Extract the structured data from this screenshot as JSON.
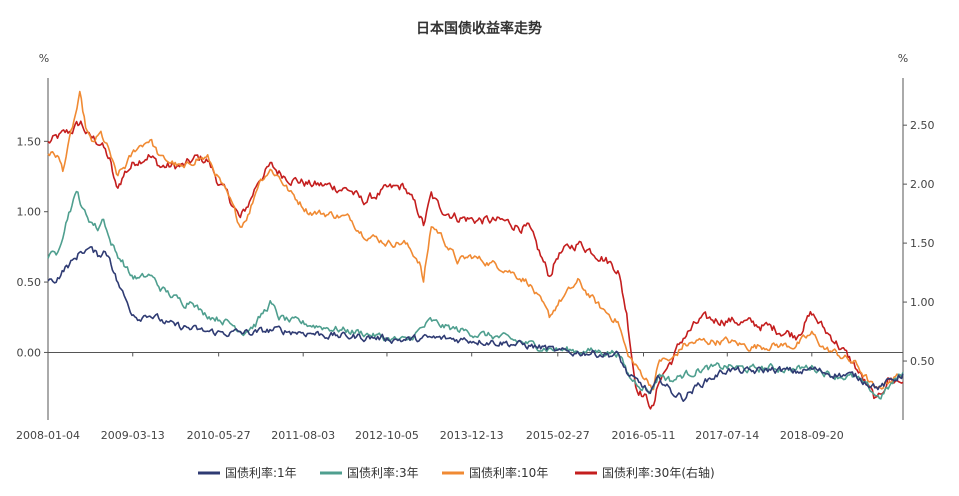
{
  "chart_data": {
    "type": "line",
    "title": "日本国债收益率走势",
    "left_unit": "%",
    "right_unit": "%",
    "x_ticks": [
      "2008-01-04",
      "2009-03-13",
      "2010-05-27",
      "2011-08-03",
      "2012-10-05",
      "2013-12-13",
      "2015-02-27",
      "2016-05-11",
      "2017-07-14",
      "2018-09-20"
    ],
    "x_range": [
      "2008-01-04",
      "2019-12-31"
    ],
    "ylim_left": [
      -0.48,
      1.95
    ],
    "ylim_right": [
      0.0,
      2.9
    ],
    "y_ticks_left": [
      "1.50",
      "1.00",
      "0.50",
      "0.00"
    ],
    "y_ticks_left_values": [
      1.5,
      1.0,
      0.5,
      0.0
    ],
    "y_ticks_right": [
      "2.50",
      "2.00",
      "1.50",
      "1.00",
      "0.50"
    ],
    "y_ticks_right_values": [
      2.5,
      2.0,
      1.5,
      1.0,
      0.5
    ],
    "grid": false,
    "legend_position": "bottom",
    "series": [
      {
        "name": "国债利率:1年",
        "color": "#2f3b73",
        "axis": "left",
        "points": [
          [
            "2008-01-04",
            0.5
          ],
          [
            "2008-02-15",
            0.52
          ],
          [
            "2008-04-01",
            0.6
          ],
          [
            "2008-05-15",
            0.65
          ],
          [
            "2008-06-20",
            0.72
          ],
          [
            "2008-08-01",
            0.74
          ],
          [
            "2008-09-15",
            0.69
          ],
          [
            "2008-10-15",
            0.72
          ],
          [
            "2008-11-15",
            0.68
          ],
          [
            "2008-12-20",
            0.52
          ],
          [
            "2009-01-20",
            0.42
          ],
          [
            "2009-03-01",
            0.3
          ],
          [
            "2009-04-15",
            0.25
          ],
          [
            "2009-06-01",
            0.28
          ],
          [
            "2009-08-01",
            0.23
          ],
          [
            "2009-10-01",
            0.19
          ],
          [
            "2009-12-01",
            0.18
          ],
          [
            "2010-03-01",
            0.15
          ],
          [
            "2010-06-01",
            0.14
          ],
          [
            "2010-09-01",
            0.14
          ],
          [
            "2010-12-01",
            0.14
          ],
          [
            "2011-03-01",
            0.16
          ],
          [
            "2011-06-01",
            0.15
          ],
          [
            "2011-09-01",
            0.14
          ],
          [
            "2012-01-01",
            0.12
          ],
          [
            "2012-06-01",
            0.11
          ],
          [
            "2012-10-05",
            0.1
          ],
          [
            "2013-01-01",
            0.09
          ],
          [
            "2013-06-01",
            0.1
          ],
          [
            "2013-12-13",
            0.09
          ],
          [
            "2014-06-01",
            0.07
          ],
          [
            "2015-01-01",
            0.03
          ],
          [
            "2015-02-27",
            0.0
          ],
          [
            "2015-08-01",
            0.0
          ],
          [
            "2016-01-01",
            -0.02
          ],
          [
            "2016-03-01",
            -0.18
          ],
          [
            "2016-05-11",
            -0.24
          ],
          [
            "2016-06-15",
            -0.3
          ],
          [
            "2016-08-01",
            -0.18
          ],
          [
            "2016-10-01",
            -0.28
          ],
          [
            "2016-12-01",
            -0.32
          ],
          [
            "2017-03-01",
            -0.22
          ],
          [
            "2017-07-14",
            -0.12
          ],
          [
            "2017-11-01",
            -0.14
          ],
          [
            "2018-03-01",
            -0.12
          ],
          [
            "2018-07-01",
            -0.14
          ],
          [
            "2018-09-20",
            -0.12
          ],
          [
            "2019-01-01",
            -0.15
          ],
          [
            "2019-05-01",
            -0.17
          ],
          [
            "2019-09-01",
            -0.25
          ],
          [
            "2019-12-31",
            -0.15
          ]
        ]
      },
      {
        "name": "国债利率:3年",
        "color": "#4f9f8f",
        "axis": "left",
        "points": [
          [
            "2008-01-04",
            0.68
          ],
          [
            "2008-02-15",
            0.7
          ],
          [
            "2008-03-20",
            0.85
          ],
          [
            "2008-04-20",
            1.0
          ],
          [
            "2008-06-05",
            1.15
          ],
          [
            "2008-06-25",
            1.02
          ],
          [
            "2008-08-01",
            0.95
          ],
          [
            "2008-09-15",
            0.88
          ],
          [
            "2008-10-15",
            0.96
          ],
          [
            "2008-11-15",
            0.8
          ],
          [
            "2008-12-20",
            0.7
          ],
          [
            "2009-01-20",
            0.65
          ],
          [
            "2009-03-01",
            0.55
          ],
          [
            "2009-04-15",
            0.52
          ],
          [
            "2009-06-10",
            0.55
          ],
          [
            "2009-08-01",
            0.46
          ],
          [
            "2009-10-01",
            0.4
          ],
          [
            "2009-12-01",
            0.35
          ],
          [
            "2010-01-15",
            0.38
          ],
          [
            "2010-03-01",
            0.28
          ],
          [
            "2010-06-01",
            0.24
          ],
          [
            "2010-08-01",
            0.2
          ],
          [
            "2010-10-01",
            0.15
          ],
          [
            "2010-12-01",
            0.2
          ],
          [
            "2011-02-15",
            0.35
          ],
          [
            "2011-04-01",
            0.25
          ],
          [
            "2011-06-01",
            0.22
          ],
          [
            "2011-09-01",
            0.2
          ],
          [
            "2012-01-01",
            0.17
          ],
          [
            "2012-06-01",
            0.14
          ],
          [
            "2012-10-05",
            0.1
          ],
          [
            "2013-01-15",
            0.08
          ],
          [
            "2013-05-15",
            0.22
          ],
          [
            "2013-08-01",
            0.18
          ],
          [
            "2013-12-13",
            0.14
          ],
          [
            "2014-06-01",
            0.1
          ],
          [
            "2015-01-01",
            0.03
          ],
          [
            "2015-02-27",
            0.02
          ],
          [
            "2015-08-01",
            0.01
          ],
          [
            "2016-01-01",
            0.0
          ],
          [
            "2016-03-01",
            -0.18
          ],
          [
            "2016-05-11",
            -0.24
          ],
          [
            "2016-06-15",
            -0.28
          ],
          [
            "2016-08-01",
            -0.15
          ],
          [
            "2016-10-01",
            -0.2
          ],
          [
            "2016-12-01",
            -0.16
          ],
          [
            "2017-03-01",
            -0.12
          ],
          [
            "2017-07-14",
            -0.1
          ],
          [
            "2017-11-01",
            -0.12
          ],
          [
            "2018-03-01",
            -0.11
          ],
          [
            "2018-07-01",
            -0.12
          ],
          [
            "2018-09-20",
            -0.1
          ],
          [
            "2019-01-01",
            -0.16
          ],
          [
            "2019-05-01",
            -0.18
          ],
          [
            "2019-09-01",
            -0.32
          ],
          [
            "2019-12-31",
            -0.14
          ]
        ]
      },
      {
        "name": "国债利率:10年",
        "color": "#f08a33",
        "axis": "left",
        "points": [
          [
            "2008-01-04",
            1.42
          ],
          [
            "2008-02-20",
            1.4
          ],
          [
            "2008-03-20",
            1.3
          ],
          [
            "2008-05-01",
            1.55
          ],
          [
            "2008-06-15",
            1.82
          ],
          [
            "2008-07-15",
            1.6
          ],
          [
            "2008-08-15",
            1.48
          ],
          [
            "2008-10-01",
            1.55
          ],
          [
            "2008-11-15",
            1.42
          ],
          [
            "2008-12-20",
            1.25
          ],
          [
            "2009-02-01",
            1.32
          ],
          [
            "2009-04-01",
            1.45
          ],
          [
            "2009-06-10",
            1.52
          ],
          [
            "2009-08-01",
            1.38
          ],
          [
            "2009-10-01",
            1.35
          ],
          [
            "2009-12-01",
            1.3
          ],
          [
            "2010-02-01",
            1.38
          ],
          [
            "2010-04-01",
            1.38
          ],
          [
            "2010-06-01",
            1.22
          ],
          [
            "2010-08-01",
            1.05
          ],
          [
            "2010-09-15",
            0.9
          ],
          [
            "2010-11-01",
            1.0
          ],
          [
            "2010-12-20",
            1.22
          ],
          [
            "2011-02-15",
            1.3
          ],
          [
            "2011-04-01",
            1.25
          ],
          [
            "2011-06-01",
            1.13
          ],
          [
            "2011-09-01",
            1.0
          ],
          [
            "2012-01-01",
            0.98
          ],
          [
            "2012-04-01",
            0.95
          ],
          [
            "2012-06-01",
            0.85
          ],
          [
            "2012-10-05",
            0.78
          ],
          [
            "2013-01-01",
            0.78
          ],
          [
            "2013-03-20",
            0.65
          ],
          [
            "2013-04-10",
            0.5
          ],
          [
            "2013-05-20",
            0.9
          ],
          [
            "2013-07-01",
            0.85
          ],
          [
            "2013-10-01",
            0.65
          ],
          [
            "2013-12-13",
            0.68
          ],
          [
            "2014-06-01",
            0.6
          ],
          [
            "2014-10-01",
            0.5
          ],
          [
            "2015-01-15",
            0.25
          ],
          [
            "2015-02-27",
            0.35
          ],
          [
            "2015-06-10",
            0.5
          ],
          [
            "2015-10-01",
            0.32
          ],
          [
            "2016-01-01",
            0.22
          ],
          [
            "2016-02-15",
            0.0
          ],
          [
            "2016-04-01",
            -0.1
          ],
          [
            "2016-07-01",
            -0.25
          ],
          [
            "2016-08-01",
            -0.05
          ],
          [
            "2016-10-01",
            -0.06
          ],
          [
            "2016-12-01",
            0.05
          ],
          [
            "2017-03-01",
            0.08
          ],
          [
            "2017-07-14",
            0.08
          ],
          [
            "2017-11-01",
            0.04
          ],
          [
            "2018-03-01",
            0.05
          ],
          [
            "2018-07-01",
            0.05
          ],
          [
            "2018-09-20",
            0.13
          ],
          [
            "2018-12-01",
            0.02
          ],
          [
            "2019-01-15",
            0.0
          ],
          [
            "2019-05-01",
            -0.08
          ],
          [
            "2019-08-20",
            -0.28
          ],
          [
            "2019-10-15",
            -0.2
          ],
          [
            "2019-12-31",
            -0.15
          ]
        ]
      },
      {
        "name": "国债利率:30年(右轴)",
        "color": "#c41e1e",
        "axis": "right",
        "points": [
          [
            "2008-01-04",
            2.35
          ],
          [
            "2008-03-01",
            2.4
          ],
          [
            "2008-05-01",
            2.45
          ],
          [
            "2008-06-20",
            2.52
          ],
          [
            "2008-08-01",
            2.4
          ],
          [
            "2008-10-01",
            2.35
          ],
          [
            "2008-11-15",
            2.2
          ],
          [
            "2008-12-20",
            1.95
          ],
          [
            "2009-02-01",
            2.1
          ],
          [
            "2009-04-01",
            2.2
          ],
          [
            "2009-06-01",
            2.25
          ],
          [
            "2009-08-01",
            2.15
          ],
          [
            "2009-10-01",
            2.15
          ],
          [
            "2009-12-01",
            2.15
          ],
          [
            "2010-02-01",
            2.22
          ],
          [
            "2010-04-01",
            2.2
          ],
          [
            "2010-06-01",
            2.0
          ],
          [
            "2010-08-01",
            1.85
          ],
          [
            "2010-09-15",
            1.7
          ],
          [
            "2010-11-01",
            1.85
          ],
          [
            "2010-12-20",
            2.05
          ],
          [
            "2011-02-15",
            2.15
          ],
          [
            "2011-04-01",
            2.1
          ],
          [
            "2011-06-01",
            2.05
          ],
          [
            "2011-09-01",
            2.0
          ],
          [
            "2012-01-01",
            1.98
          ],
          [
            "2012-04-01",
            1.95
          ],
          [
            "2012-06-01",
            1.85
          ],
          [
            "2012-10-05",
            1.95
          ],
          [
            "2013-01-01",
            1.98
          ],
          [
            "2013-03-20",
            1.75
          ],
          [
            "2013-04-10",
            1.65
          ],
          [
            "2013-05-20",
            1.9
          ],
          [
            "2013-07-01",
            1.8
          ],
          [
            "2013-10-01",
            1.72
          ],
          [
            "2013-12-13",
            1.7
          ],
          [
            "2014-06-01",
            1.68
          ],
          [
            "2014-10-01",
            1.62
          ],
          [
            "2015-01-15",
            1.22
          ],
          [
            "2015-02-27",
            1.4
          ],
          [
            "2015-06-10",
            1.5
          ],
          [
            "2015-10-01",
            1.4
          ],
          [
            "2016-01-01",
            1.28
          ],
          [
            "2016-02-15",
            0.9
          ],
          [
            "2016-04-01",
            0.3
          ],
          [
            "2016-07-01",
            0.1
          ],
          [
            "2016-08-01",
            0.35
          ],
          [
            "2016-10-01",
            0.5
          ],
          [
            "2016-12-01",
            0.7
          ],
          [
            "2017-03-01",
            0.85
          ],
          [
            "2017-07-14",
            0.85
          ],
          [
            "2017-11-01",
            0.82
          ],
          [
            "2018-03-01",
            0.78
          ],
          [
            "2018-07-01",
            0.72
          ],
          [
            "2018-09-20",
            0.9
          ],
          [
            "2018-12-01",
            0.75
          ],
          [
            "2019-01-15",
            0.68
          ],
          [
            "2019-05-01",
            0.45
          ],
          [
            "2019-08-20",
            0.15
          ],
          [
            "2019-10-15",
            0.35
          ],
          [
            "2019-12-31",
            0.32
          ]
        ]
      }
    ]
  }
}
